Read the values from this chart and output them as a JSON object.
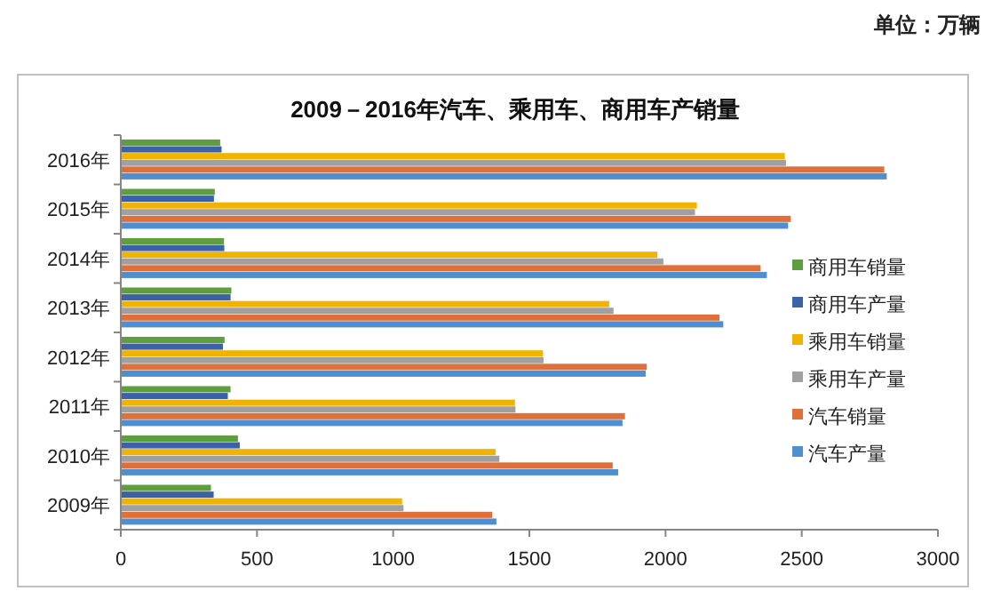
{
  "chart_data": {
    "type": "bar",
    "orientation": "horizontal",
    "title": "2009－2016年汽车、乘用车、商用车产销量",
    "annotations": [
      "单位：万辆"
    ],
    "categories": [
      "2016年",
      "2015年",
      "2014年",
      "2013年",
      "2012年",
      "2011年",
      "2010年",
      "2009年"
    ],
    "series": [
      {
        "name": "商用车销量",
        "color": "#5f9e3e",
        "values": [
          365,
          345,
          379,
          406,
          381,
          403,
          430,
          331
        ]
      },
      {
        "name": "商用车产量",
        "color": "#3b62a8",
        "values": [
          370,
          342,
          380,
          403,
          375,
          393,
          437,
          341
        ]
      },
      {
        "name": "乘用车销量",
        "color": "#f0b400",
        "values": [
          2438,
          2115,
          1970,
          1793,
          1550,
          1447,
          1376,
          1033
        ]
      },
      {
        "name": "乘用车产量",
        "color": "#a0a0a0",
        "values": [
          2442,
          2108,
          1992,
          1809,
          1552,
          1449,
          1390,
          1038
        ]
      },
      {
        "name": "汽车销量",
        "color": "#e0703a",
        "values": [
          2803,
          2460,
          2349,
          2198,
          1931,
          1851,
          1806,
          1364
        ]
      },
      {
        "name": "汽车产量",
        "color": "#4f8fd0",
        "values": [
          2812,
          2450,
          2372,
          2212,
          1927,
          1842,
          1826,
          1379
        ]
      }
    ],
    "xlim": [
      0,
      3000
    ],
    "xticks": [
      0,
      500,
      1000,
      1500,
      2000,
      2500,
      3000
    ],
    "grid": false,
    "legend": "right"
  }
}
